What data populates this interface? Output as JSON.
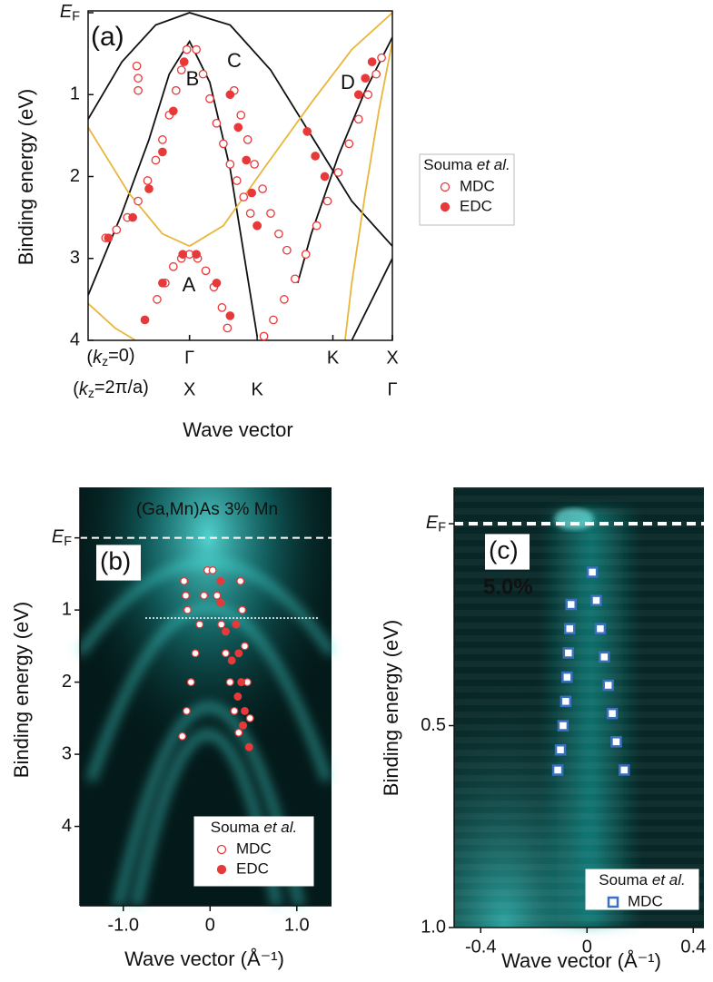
{
  "chart_data": [
    {
      "type": "scatter",
      "panel_label": "(a)",
      "y_label": "Binding energy (eV)",
      "x_label": "Wave vector",
      "ylim": [
        0,
        4
      ],
      "y_inverted": true,
      "yticks": [
        {
          "value": 0,
          "label": "EF"
        },
        1,
        2,
        3,
        4
      ],
      "xlim": [
        -0.75,
        1.5
      ],
      "xtick_rows": [
        {
          "label": "(kz=0)",
          "ticks": [
            {
              "value": 0,
              "label": "Γ"
            },
            {
              "value": 1.06,
              "label": "K"
            },
            {
              "value": 1.5,
              "label": "X"
            }
          ]
        },
        {
          "label": "(kz=2π/a)",
          "ticks": [
            {
              "value": 0,
              "label": "X"
            },
            {
              "value": 0.5,
              "label": "K"
            },
            {
              "value": 1.5,
              "label": "Γ"
            }
          ]
        }
      ],
      "bands": [
        {
          "color": "#111111",
          "x": [
            -0.75,
            -0.5,
            -0.25,
            0,
            0.3,
            0.6,
            0.9,
            1.2,
            1.5
          ],
          "y": [
            1.3,
            0.6,
            0.15,
            0,
            0.15,
            0.7,
            1.5,
            2.3,
            2.85
          ]
        },
        {
          "color": "#111111",
          "x": [
            -0.75,
            -0.5,
            -0.3,
            -0.15,
            0,
            0.15,
            0.3,
            0.5
          ],
          "y": [
            3.45,
            2.45,
            1.55,
            0.75,
            0.35,
            0.85,
            1.9,
            3.95
          ]
        },
        {
          "color": "#111111",
          "x": [
            1.5,
            1.3,
            1.1,
            0.9,
            0.8
          ],
          "y": [
            0.3,
            0.95,
            1.75,
            2.7,
            3.3
          ]
        },
        {
          "color": "#111111",
          "x": [
            1.5,
            1.35,
            1.2
          ],
          "y": [
            3.0,
            3.5,
            4.0
          ]
        },
        {
          "color": "#e8b73a",
          "x": [
            -0.75,
            -0.45,
            -0.2,
            0
          ],
          "y": [
            1.4,
            2.2,
            2.7,
            2.85
          ]
        },
        {
          "color": "#e8b73a",
          "x": [
            0,
            0.25,
            0.55,
            0.9,
            1.2,
            1.5
          ],
          "y": [
            2.85,
            2.6,
            1.9,
            1.1,
            0.45,
            0
          ]
        },
        {
          "color": "#e8b73a",
          "x": [
            -0.75,
            -0.55,
            -0.4
          ],
          "y": [
            3.55,
            3.85,
            4.0
          ]
        },
        {
          "color": "#e8b73a",
          "x": [
            1.5,
            1.4,
            1.3,
            1.2,
            1.15
          ],
          "y": [
            0.35,
            1.2,
            2.2,
            3.3,
            4.0
          ]
        }
      ],
      "band_labels": [
        "A",
        "B",
        "C",
        "D"
      ],
      "legend_title": "Souma et al.",
      "series": [
        {
          "name": "MDC",
          "color": "#e8393a",
          "marker": "open-circle",
          "x": [
            -0.39,
            -0.38,
            -0.38,
            -0.02,
            -0.06,
            -0.1,
            -0.15,
            -0.2,
            -0.25,
            -0.31,
            -0.38,
            -0.46,
            -0.54,
            -0.62,
            0.05,
            0.1,
            0.15,
            0.2,
            0.25,
            0.3,
            0.35,
            0.4,
            0.45,
            0.5,
            0.33,
            0.38,
            0.43,
            0.48,
            0.54,
            0.6,
            0.66,
            0.72,
            1.42,
            1.38,
            1.32,
            1.25,
            1.18,
            1.1,
            1.02,
            0.94,
            0.86,
            0.78,
            0.7,
            0.62,
            0.55,
            0,
            -0.06,
            -0.12,
            -0.18,
            -0.24,
            0.06,
            0.12,
            0.18,
            0.24,
            0.28
          ],
          "y": [
            0.65,
            0.8,
            0.95,
            0.45,
            0.7,
            0.95,
            1.25,
            1.55,
            1.8,
            2.05,
            2.3,
            2.5,
            2.65,
            2.75,
            0.45,
            0.75,
            1.05,
            1.35,
            1.6,
            1.85,
            2.05,
            2.25,
            2.45,
            2.6,
            0.95,
            1.25,
            1.55,
            1.85,
            2.15,
            2.45,
            2.7,
            2.9,
            0.55,
            0.75,
            1.0,
            1.3,
            1.6,
            1.95,
            2.3,
            2.6,
            2.95,
            3.25,
            3.5,
            3.75,
            3.95,
            2.95,
            3.0,
            3.1,
            3.3,
            3.5,
            3.0,
            3.15,
            3.35,
            3.6,
            3.85
          ]
        },
        {
          "name": "EDC",
          "color": "#e8393a",
          "marker": "filled-circle",
          "x": [
            -0.04,
            -0.12,
            -0.2,
            -0.3,
            -0.42,
            -0.6,
            0.3,
            0.36,
            0.42,
            0.46,
            0.5,
            0.87,
            0.93,
            1.0,
            1.25,
            1.3,
            1.35,
            -0.05,
            -0.2,
            -0.33,
            0.05,
            0.2,
            0.3
          ],
          "y": [
            0.6,
            1.2,
            1.7,
            2.15,
            2.5,
            2.75,
            1.0,
            1.4,
            1.8,
            2.2,
            2.6,
            1.45,
            1.75,
            2.0,
            1.0,
            0.8,
            0.6,
            2.95,
            3.3,
            3.75,
            2.95,
            3.3,
            3.7
          ]
        }
      ]
    },
    {
      "type": "scatter",
      "panel_label": "(b)",
      "title": "(Ga,Mn)As 3% Mn",
      "y_label": "Binding energy (eV)",
      "x_label": "Wave vector (Å⁻¹)",
      "ylim": [
        -0.7,
        5.1
      ],
      "y_inverted": true,
      "yticks": [
        {
          "value": 0,
          "label": "EF"
        },
        1,
        2,
        3,
        4
      ],
      "xlim": [
        -1.5,
        1.4
      ],
      "xticks": [
        {
          "value": -1,
          "label": "-1.0"
        },
        0,
        {
          "value": 1,
          "label": "1.0"
        }
      ],
      "ef_line": true,
      "legend_title": "Souma et al.",
      "series": [
        {
          "name": "MDC",
          "color": "#e8393a",
          "marker": "open-circle",
          "x": [
            -0.3,
            -0.28,
            -0.26,
            -0.03,
            -0.07,
            -0.12,
            -0.17,
            -0.22,
            -0.27,
            -0.32,
            0.03,
            0.08,
            0.13,
            0.18,
            0.23,
            0.28,
            0.33,
            0.35,
            0.37,
            0.4,
            0.43,
            0.46
          ],
          "y": [
            0.6,
            0.8,
            1.0,
            0.45,
            0.8,
            1.2,
            1.6,
            2.0,
            2.4,
            2.75,
            0.45,
            0.8,
            1.2,
            1.6,
            2.0,
            2.4,
            2.7,
            0.6,
            1.0,
            1.5,
            2.0,
            2.5
          ]
        },
        {
          "name": "EDC",
          "color": "#e8393a",
          "marker": "filled-circle",
          "x": [
            0.12,
            0.12,
            0.18,
            0.25,
            0.32,
            0.38,
            0.45,
            0.3,
            0.33,
            0.36,
            0.4
          ],
          "y": [
            0.6,
            0.9,
            1.3,
            1.7,
            2.2,
            2.6,
            2.9,
            1.2,
            1.6,
            2.0,
            2.4
          ]
        }
      ]
    },
    {
      "type": "scatter",
      "panel_label": "(c)",
      "annotation": "5.0%",
      "y_label": "Binding energy (eV)",
      "x_label": "Wave vector (Å⁻¹)",
      "ylim": [
        -0.09,
        1.0
      ],
      "y_inverted": true,
      "yticks": [
        {
          "value": 0,
          "label": "EF"
        },
        0.5,
        {
          "value": 1,
          "label": "1.0"
        }
      ],
      "xlim": [
        -0.5,
        0.44
      ],
      "xticks": [
        -0.4,
        0,
        0.4
      ],
      "ef_line": true,
      "legend_title": "Souma et al.",
      "series": [
        {
          "name": "MDC",
          "color": "#3b6fc0",
          "marker": "open-square",
          "x": [
            -0.06,
            -0.065,
            -0.07,
            -0.075,
            -0.08,
            -0.09,
            -0.1,
            -0.11,
            0.02,
            0.035,
            0.05,
            0.065,
            0.08,
            0.095,
            0.11,
            0.14
          ],
          "y": [
            0.2,
            0.26,
            0.32,
            0.38,
            0.44,
            0.5,
            0.56,
            0.61,
            0.12,
            0.19,
            0.26,
            0.33,
            0.4,
            0.47,
            0.54,
            0.61
          ]
        }
      ]
    }
  ]
}
